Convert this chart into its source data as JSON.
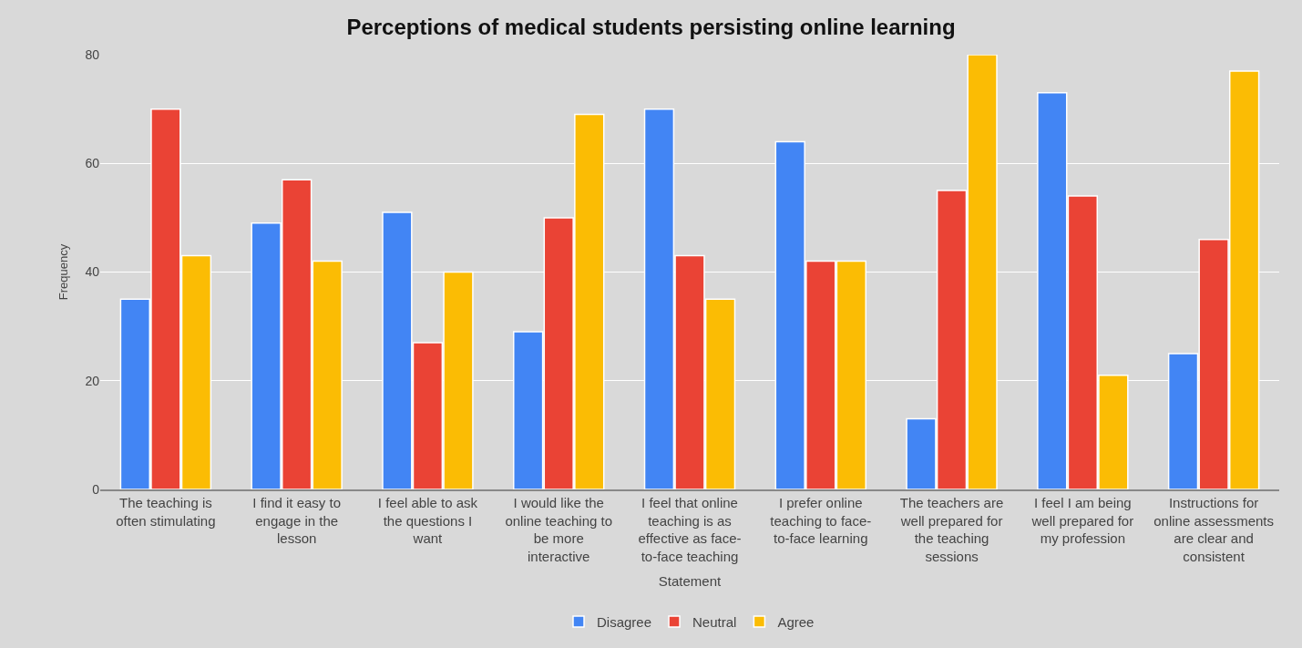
{
  "chart_data": {
    "type": "bar",
    "title": "Perceptions of medical students persisting online learning",
    "xlabel": "Statement",
    "ylabel": "Frequency",
    "categories": [
      "The teaching is often stimulating",
      "I find it easy to engage in the lesson",
      "I feel able to ask the questions I want",
      "I would like the online teaching to be more interactive",
      "I feel that online teaching is as effective as face-to-face teaching",
      "I prefer online teaching to face-to-face learning",
      "The teachers are well prepared for the teaching sessions",
      "I feel I am being well prepared for my profession",
      "Instructions for online assessments are clear and consistent"
    ],
    "series": [
      {
        "name": "Disagree",
        "color": "#4285f4",
        "values": [
          35,
          49,
          51,
          29,
          70,
          64,
          13,
          73,
          25
        ]
      },
      {
        "name": "Neutral",
        "color": "#ea4335",
        "values": [
          70,
          57,
          27,
          50,
          43,
          42,
          55,
          54,
          46
        ]
      },
      {
        "name": "Agree",
        "color": "#fbbc04",
        "values": [
          43,
          42,
          40,
          69,
          35,
          42,
          80,
          21,
          77
        ]
      }
    ],
    "ylim": [
      0,
      80
    ],
    "yticks": [
      0,
      20,
      40,
      60,
      80
    ],
    "grid": "y",
    "legend": "bottom"
  }
}
